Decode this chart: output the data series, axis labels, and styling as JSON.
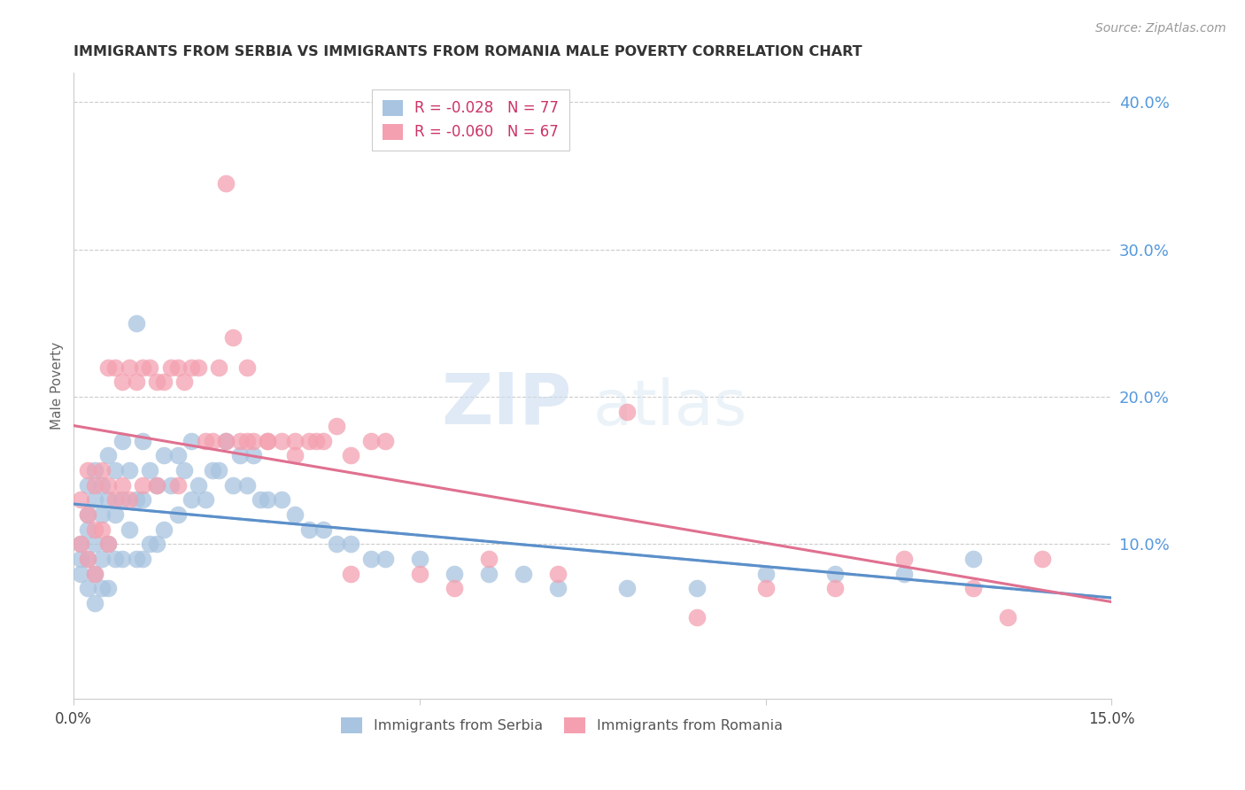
{
  "title": "IMMIGRANTS FROM SERBIA VS IMMIGRANTS FROM ROMANIA MALE POVERTY CORRELATION CHART",
  "source": "Source: ZipAtlas.com",
  "ylabel": "Male Poverty",
  "xlim": [
    0.0,
    0.15
  ],
  "ylim": [
    -0.005,
    0.42
  ],
  "ytick_labels_right": [
    "40.0%",
    "30.0%",
    "20.0%",
    "10.0%"
  ],
  "yticks": [
    0.4,
    0.3,
    0.2,
    0.1
  ],
  "serbia_R": "-0.028",
  "serbia_N": "77",
  "romania_R": "-0.060",
  "romania_N": "67",
  "serbia_color": "#a8c4e0",
  "romania_color": "#f4a0b0",
  "serbia_line_color": "#5b8fc9",
  "romania_line_color": "#e07090",
  "trendline_dash_color": "#aaccee",
  "watermark_zip": "ZIP",
  "watermark_atlas": "atlas",
  "serbia_x": [
    0.001,
    0.001,
    0.001,
    0.002,
    0.002,
    0.002,
    0.002,
    0.002,
    0.003,
    0.003,
    0.003,
    0.003,
    0.003,
    0.004,
    0.004,
    0.004,
    0.004,
    0.005,
    0.005,
    0.005,
    0.005,
    0.006,
    0.006,
    0.006,
    0.007,
    0.007,
    0.007,
    0.008,
    0.008,
    0.009,
    0.009,
    0.009,
    0.01,
    0.01,
    0.01,
    0.011,
    0.011,
    0.012,
    0.012,
    0.013,
    0.013,
    0.014,
    0.015,
    0.015,
    0.016,
    0.017,
    0.017,
    0.018,
    0.019,
    0.02,
    0.021,
    0.022,
    0.023,
    0.024,
    0.025,
    0.026,
    0.027,
    0.028,
    0.03,
    0.032,
    0.034,
    0.036,
    0.038,
    0.04,
    0.043,
    0.045,
    0.05,
    0.055,
    0.06,
    0.065,
    0.07,
    0.08,
    0.09,
    0.1,
    0.11,
    0.12,
    0.13
  ],
  "serbia_y": [
    0.1,
    0.09,
    0.08,
    0.14,
    0.12,
    0.11,
    0.09,
    0.07,
    0.15,
    0.13,
    0.1,
    0.08,
    0.06,
    0.14,
    0.12,
    0.09,
    0.07,
    0.16,
    0.13,
    0.1,
    0.07,
    0.15,
    0.12,
    0.09,
    0.17,
    0.13,
    0.09,
    0.15,
    0.11,
    0.25,
    0.13,
    0.09,
    0.17,
    0.13,
    0.09,
    0.15,
    0.1,
    0.14,
    0.1,
    0.16,
    0.11,
    0.14,
    0.16,
    0.12,
    0.15,
    0.17,
    0.13,
    0.14,
    0.13,
    0.15,
    0.15,
    0.17,
    0.14,
    0.16,
    0.14,
    0.16,
    0.13,
    0.13,
    0.13,
    0.12,
    0.11,
    0.11,
    0.1,
    0.1,
    0.09,
    0.09,
    0.09,
    0.08,
    0.08,
    0.08,
    0.07,
    0.07,
    0.07,
    0.08,
    0.08,
    0.08,
    0.09
  ],
  "romania_x": [
    0.001,
    0.001,
    0.002,
    0.002,
    0.002,
    0.003,
    0.003,
    0.003,
    0.004,
    0.004,
    0.005,
    0.005,
    0.005,
    0.006,
    0.006,
    0.007,
    0.007,
    0.008,
    0.008,
    0.009,
    0.01,
    0.01,
    0.011,
    0.012,
    0.012,
    0.013,
    0.014,
    0.015,
    0.015,
    0.016,
    0.017,
    0.018,
    0.019,
    0.02,
    0.021,
    0.022,
    0.023,
    0.024,
    0.025,
    0.026,
    0.028,
    0.03,
    0.032,
    0.034,
    0.036,
    0.038,
    0.04,
    0.043,
    0.045,
    0.05,
    0.055,
    0.06,
    0.07,
    0.08,
    0.09,
    0.1,
    0.11,
    0.12,
    0.13,
    0.135,
    0.14,
    0.022,
    0.025,
    0.028,
    0.032,
    0.035,
    0.04
  ],
  "romania_y": [
    0.13,
    0.1,
    0.15,
    0.12,
    0.09,
    0.14,
    0.11,
    0.08,
    0.15,
    0.11,
    0.22,
    0.14,
    0.1,
    0.22,
    0.13,
    0.21,
    0.14,
    0.22,
    0.13,
    0.21,
    0.22,
    0.14,
    0.22,
    0.21,
    0.14,
    0.21,
    0.22,
    0.22,
    0.14,
    0.21,
    0.22,
    0.22,
    0.17,
    0.17,
    0.22,
    0.17,
    0.24,
    0.17,
    0.22,
    0.17,
    0.17,
    0.17,
    0.17,
    0.17,
    0.17,
    0.18,
    0.16,
    0.17,
    0.17,
    0.08,
    0.07,
    0.09,
    0.08,
    0.19,
    0.05,
    0.07,
    0.07,
    0.09,
    0.07,
    0.05,
    0.09,
    0.345,
    0.17,
    0.17,
    0.16,
    0.17,
    0.08
  ]
}
